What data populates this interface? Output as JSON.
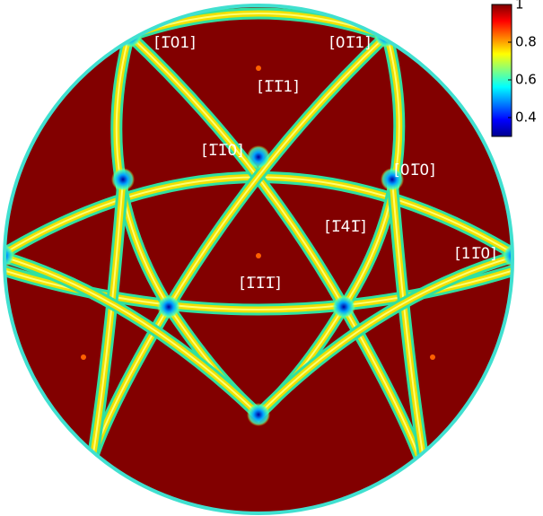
{
  "labels": [
    "[1̅01]",
    "[01̅1]",
    "[1̅1̅1]",
    "[1̅1̅0]",
    "[01̅0]",
    "[1̅41̅]",
    "[11̅0]",
    "[1̅1̅1̅]"
  ],
  "colorbar": {
    "clim": [
      0.3,
      1
    ],
    "ticks": [
      1,
      0.8,
      0.6,
      0.4
    ]
  }
}
